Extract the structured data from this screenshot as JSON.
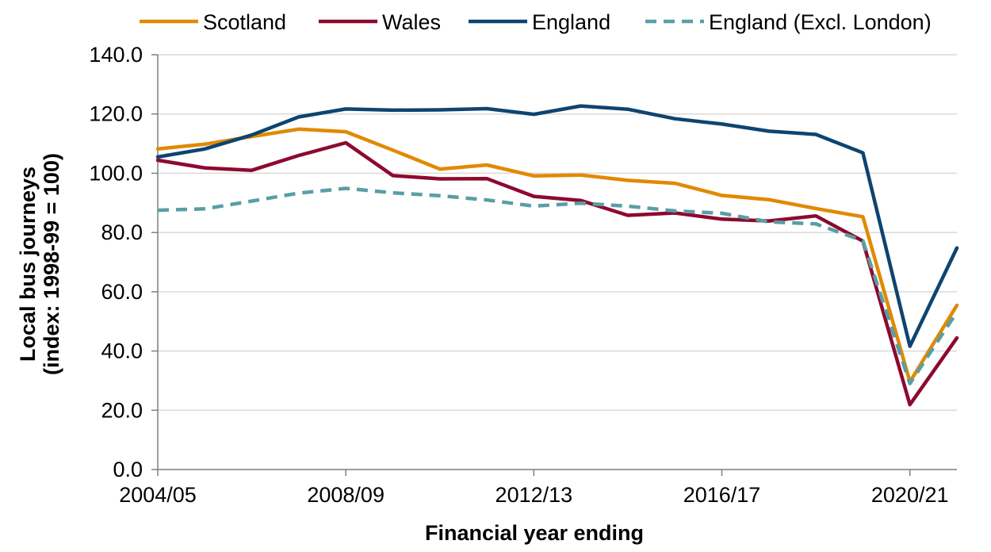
{
  "chart_data": {
    "type": "line",
    "title": "",
    "xlabel": "Financial year ending",
    "ylabel_line1": "Local bus journeys",
    "ylabel_line2": "(index: 1998-99 = 100)",
    "ylim": [
      0,
      140
    ],
    "yticks": [
      "0.0",
      "20.0",
      "40.0",
      "60.0",
      "80.0",
      "100.0",
      "120.0",
      "140.0"
    ],
    "x": [
      "2004/05",
      "2005/06",
      "2006/07",
      "2007/08",
      "2008/09",
      "2009/10",
      "2010/11",
      "2011/12",
      "2012/13",
      "2013/14",
      "2014/15",
      "2015/16",
      "2016/17",
      "2017/18",
      "2018/19",
      "2019/20",
      "2020/21",
      "2021/22"
    ],
    "xtick_labels": [
      "2004/05",
      "2008/09",
      "2012/13",
      "2016/17",
      "2020/21"
    ],
    "grid": "horizontal",
    "legend_position": "top",
    "series": [
      {
        "name": "Scotland",
        "color": "#E08A00",
        "dashed": false,
        "values": [
          108.2,
          109.8,
          112.4,
          114.9,
          114.0,
          107.8,
          101.4,
          102.8,
          99.1,
          99.4,
          97.6,
          96.6,
          92.5,
          91.1,
          88.1,
          85.3,
          29.6,
          55.4
        ]
      },
      {
        "name": "Wales",
        "color": "#8C0A2F",
        "dashed": false,
        "values": [
          104.4,
          101.8,
          101.0,
          106.0,
          110.3,
          99.2,
          98.1,
          98.2,
          92.2,
          90.8,
          85.8,
          86.6,
          84.5,
          83.9,
          85.6,
          77.1,
          21.9,
          44.4
        ]
      },
      {
        "name": "England",
        "color": "#0E4470",
        "dashed": false,
        "values": [
          105.5,
          108.2,
          112.9,
          119.0,
          121.7,
          121.3,
          121.4,
          121.8,
          119.9,
          122.7,
          121.6,
          118.4,
          116.6,
          114.2,
          113.1,
          106.9,
          41.6,
          74.8
        ]
      },
      {
        "name": "England (Excl. London)",
        "color": "#5A9EA5",
        "dashed": true,
        "values": [
          87.5,
          88.0,
          90.6,
          93.3,
          94.9,
          93.4,
          92.4,
          91.0,
          88.9,
          89.9,
          88.9,
          87.3,
          86.5,
          83.6,
          82.9,
          77.2,
          29.0,
          53.2
        ]
      }
    ]
  }
}
